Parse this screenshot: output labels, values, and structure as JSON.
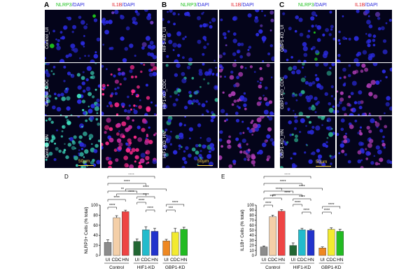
{
  "panels": {
    "A": {
      "letter": "A",
      "rows": [
        "Control_UI",
        "Control_CDC",
        "Control_HN"
      ],
      "scale": "50µm"
    },
    "B": {
      "letter": "B",
      "rows": [
        "HIF1-KD_UI",
        "HIF1-KD_CDC",
        "HIF1-KD_HN"
      ],
      "scale": "50µm"
    },
    "C": {
      "letter": "C",
      "rows": [
        "GBP1-KD_UI",
        "GBP1-KD_CDC",
        "GBP1-KD_HN"
      ],
      "scale": "50µm"
    }
  },
  "headers": {
    "nlrp3": "NLRP3",
    "il1b": "IL1B",
    "dapi": "/DAPI"
  },
  "colors": {
    "nlrp3_stain": "#1ec21e",
    "il1b_stain": "#e0202a",
    "dapi_stain": "#2a2adc",
    "tile_bg": "#04041a"
  },
  "chart_data": [
    {
      "type": "bar",
      "letter": "D",
      "ylabel": "NLRP3+ Cells  (% total)",
      "ylim": [
        0,
        100
      ],
      "yticks": [
        0,
        20,
        40,
        60,
        80,
        100
      ],
      "categories": [
        "UI",
        "CDC",
        "HN",
        "UI",
        "CDC",
        "HN",
        "UI",
        "CDC",
        "HN"
      ],
      "groups": [
        "Control",
        "HIF1-KD",
        "GBP1-KD"
      ],
      "values": [
        26,
        75,
        87,
        28,
        51,
        48,
        29,
        46,
        52
      ],
      "errors": [
        5,
        4,
        3,
        5,
        6,
        6,
        3,
        8,
        4
      ],
      "colors": [
        "#8c8c8c",
        "#f4cfa8",
        "#ee4444",
        "#226633",
        "#22bbcc",
        "#2233cc",
        "#ee8822",
        "#f2ea30",
        "#22bb22"
      ],
      "sig": [
        "****",
        "****",
        "**",
        "****",
        "****",
        "****",
        "****",
        "****",
        "****",
        "****",
        "***",
        "****"
      ]
    },
    {
      "type": "bar",
      "letter": "E",
      "ylabel": "IL1B+ Cells (% total)",
      "ylim": [
        0,
        100
      ],
      "yticks": [
        0,
        10,
        20,
        30,
        40,
        50,
        60,
        70,
        80,
        90,
        100
      ],
      "categories": [
        "UI",
        "CDC",
        "HN",
        "UI",
        "CDC",
        "HN",
        "UI",
        "CDC",
        "HN"
      ],
      "groups": [
        "Control",
        "HIF1-KD",
        "GBP1-KD"
      ],
      "values": [
        17,
        77,
        88,
        20,
        51,
        50,
        15,
        52,
        48
      ],
      "errors": [
        2,
        3,
        3,
        5,
        3,
        2,
        2,
        3,
        4
      ],
      "colors": [
        "#8c8c8c",
        "#f4cfa8",
        "#ee4444",
        "#226633",
        "#22bbcc",
        "#2233cc",
        "#ee8822",
        "#f2ea30",
        "#22bb22"
      ],
      "sig": [
        "****",
        "****",
        "****",
        "****",
        "****",
        "****",
        "****",
        "****",
        "****",
        "****",
        "****",
        "****"
      ]
    }
  ]
}
